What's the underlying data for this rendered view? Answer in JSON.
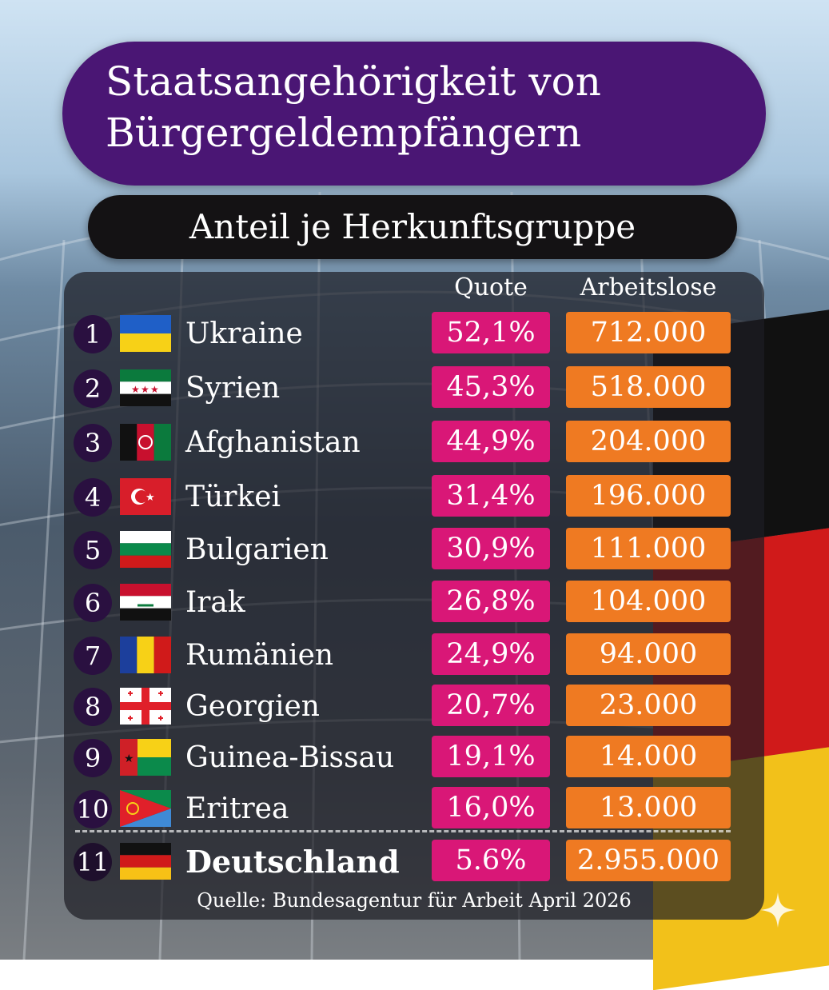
{
  "header": {
    "title_line1": "Staatsangehörigkeit von",
    "title_line2": "Bürgergeldempfängern",
    "subtitle": "Anteil je Herkunftsgruppe"
  },
  "columns": {
    "quote": "Quote",
    "arbeitslose": "Arbeitslose"
  },
  "rows": [
    {
      "rank": "1",
      "country": "Ukraine",
      "quote": "52,1%",
      "arbeitslose": "712.000",
      "flag": "ukraine-flag"
    },
    {
      "rank": "2",
      "country": "Syrien",
      "quote": "45,3%",
      "arbeitslose": "518.000",
      "flag": "syria-flag"
    },
    {
      "rank": "3",
      "country": "Afghanistan",
      "quote": "44,9%",
      "arbeitslose": "204.000",
      "flag": "afghanistan-flag"
    },
    {
      "rank": "4",
      "country": "Türkei",
      "quote": "31,4%",
      "arbeitslose": "196.000",
      "flag": "turkey-flag"
    },
    {
      "rank": "5",
      "country": "Bulgarien",
      "quote": "30,9%",
      "arbeitslose": "111.000",
      "flag": "bulgaria-flag"
    },
    {
      "rank": "6",
      "country": "Irak",
      "quote": "26,8%",
      "arbeitslose": "104.000",
      "flag": "iraq-flag"
    },
    {
      "rank": "7",
      "country": "Rumänien",
      "quote": "24,9%",
      "arbeitslose": "94.000",
      "flag": "romania-flag"
    },
    {
      "rank": "8",
      "country": "Georgien",
      "quote": "20,7%",
      "arbeitslose": "23.000",
      "flag": "georgia-flag"
    },
    {
      "rank": "9",
      "country": "Guinea-Bissau",
      "quote": "19,1%",
      "arbeitslose": "14.000",
      "flag": "guinea-bissau-flag"
    },
    {
      "rank": "10",
      "country": "Eritrea",
      "quote": "16,0%",
      "arbeitslose": "13.000",
      "flag": "eritrea-flag"
    },
    {
      "rank": "11",
      "country": "Deutschland",
      "quote": "5.6%",
      "arbeitslose": "2.955.000",
      "flag": "germany-flag"
    }
  ],
  "source": "Quelle: Bundesagentur für Arbeit April 2026",
  "colors": {
    "title_bg": "#4a1674",
    "quote_bg": "#d91777",
    "arbeitslose_bg": "#ef7a22",
    "subtitle_bg": "#141214"
  },
  "chart_data": {
    "type": "table",
    "columns": [
      "Quote",
      "Arbeitslose"
    ],
    "categories": [
      "Ukraine",
      "Syrien",
      "Afghanistan",
      "Türkei",
      "Bulgarien",
      "Irak",
      "Rumänien",
      "Georgien",
      "Guinea-Bissau",
      "Eritrea",
      "Deutschland"
    ],
    "series": [
      {
        "name": "Quote",
        "values": [
          52.1,
          45.3,
          44.9,
          31.4,
          30.9,
          26.8,
          24.9,
          20.7,
          19.1,
          16.0,
          5.6
        ]
      },
      {
        "name": "Arbeitslose",
        "values": [
          712000,
          518000,
          204000,
          196000,
          111000,
          104000,
          94000,
          23000,
          14000,
          13000,
          2955000
        ]
      }
    ]
  }
}
